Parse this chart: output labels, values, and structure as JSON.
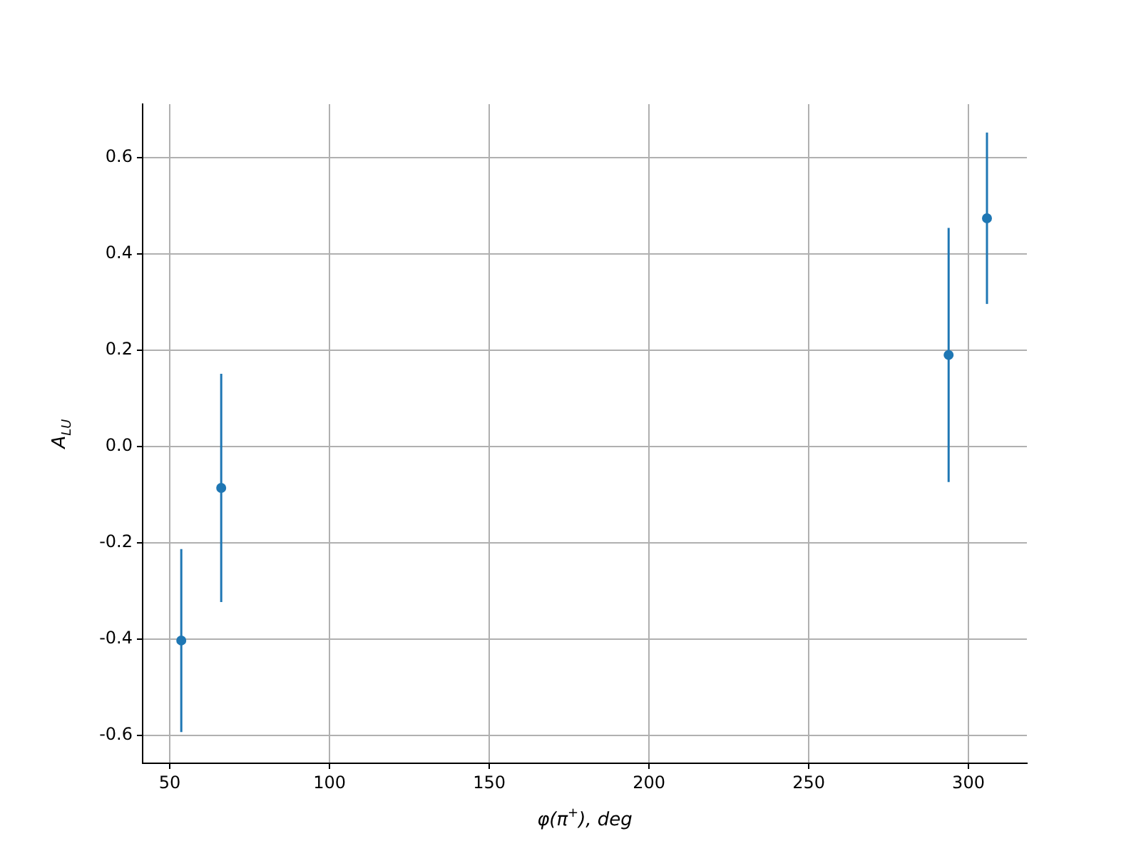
{
  "chart_data": {
    "type": "scatter",
    "xlabel": "φ(π$^{+}$), deg",
    "ylabel": "A$_{LU}$",
    "x": [
      53.6,
      66.1,
      293.8,
      305.8
    ],
    "series": [
      {
        "color": "#1f77b4",
        "values": [
          -0.403,
          -0.086,
          0.19,
          0.474
        ],
        "errors": [
          0.19,
          0.237,
          0.264,
          0.178
        ]
      }
    ],
    "xlim": [
      41.5,
      318.3
    ],
    "ylim": [
      -0.658,
      0.711
    ],
    "xticks": [
      50,
      100,
      150,
      200,
      250,
      300
    ],
    "yticks": [
      -0.6,
      -0.4,
      -0.2,
      {
        "value": 0,
        "label": "0.0"
      },
      0.2,
      0.4,
      0.6
    ],
    "grid": true,
    "marker": "circle",
    "legend": false
  }
}
